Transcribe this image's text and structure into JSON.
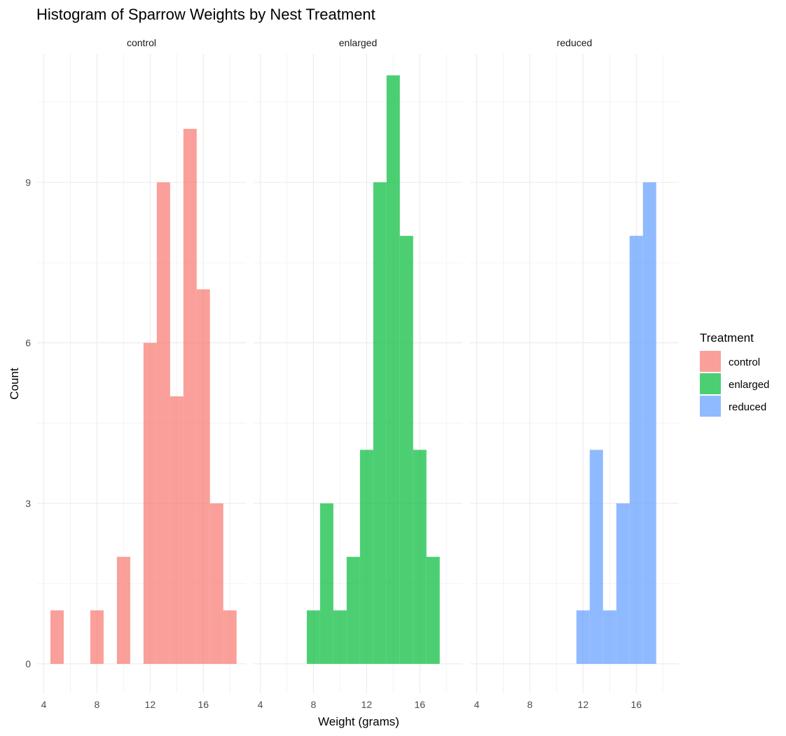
{
  "chart_data": {
    "type": "bar",
    "subtype": "faceted-histogram",
    "title": "Histogram of Sparrow Weights by Nest Treatment",
    "xlabel": "Weight (grams)",
    "ylabel": "Count",
    "xlim": [
      3.5,
      19.2
    ],
    "ylim": [
      -0.55,
      11.4
    ],
    "x_ticks": [
      "4",
      "8",
      "12",
      "16"
    ],
    "x_tick_values": [
      4,
      8,
      12,
      16
    ],
    "y_ticks": [
      "0",
      "3",
      "6",
      "9"
    ],
    "y_tick_values": [
      0,
      3,
      6,
      9
    ],
    "bin_width": 1,
    "grid": true,
    "legend": {
      "title": "Treatment",
      "position": "right",
      "entries": [
        "control",
        "enlarged",
        "reduced"
      ]
    },
    "panels": [
      {
        "name": "control",
        "color": "#F8766D",
        "bins": [
          {
            "x": 5,
            "count": 1
          },
          {
            "x": 8,
            "count": 1
          },
          {
            "x": 10,
            "count": 2
          },
          {
            "x": 12,
            "count": 6
          },
          {
            "x": 13,
            "count": 9
          },
          {
            "x": 14,
            "count": 5
          },
          {
            "x": 15,
            "count": 10
          },
          {
            "x": 16,
            "count": 7
          },
          {
            "x": 17,
            "count": 3
          },
          {
            "x": 18,
            "count": 1
          }
        ]
      },
      {
        "name": "enlarged",
        "color": "#00BA38",
        "bins": [
          {
            "x": 8,
            "count": 1
          },
          {
            "x": 9,
            "count": 3
          },
          {
            "x": 10,
            "count": 1
          },
          {
            "x": 11,
            "count": 2
          },
          {
            "x": 12,
            "count": 4
          },
          {
            "x": 13,
            "count": 9
          },
          {
            "x": 14,
            "count": 11
          },
          {
            "x": 15,
            "count": 8
          },
          {
            "x": 16,
            "count": 4
          },
          {
            "x": 17,
            "count": 2
          }
        ]
      },
      {
        "name": "reduced",
        "color": "#619CFF",
        "bins": [
          {
            "x": 12,
            "count": 1
          },
          {
            "x": 13,
            "count": 4
          },
          {
            "x": 14,
            "count": 1
          },
          {
            "x": 15,
            "count": 3
          },
          {
            "x": 16,
            "count": 8
          },
          {
            "x": 17,
            "count": 9
          }
        ]
      }
    ]
  }
}
